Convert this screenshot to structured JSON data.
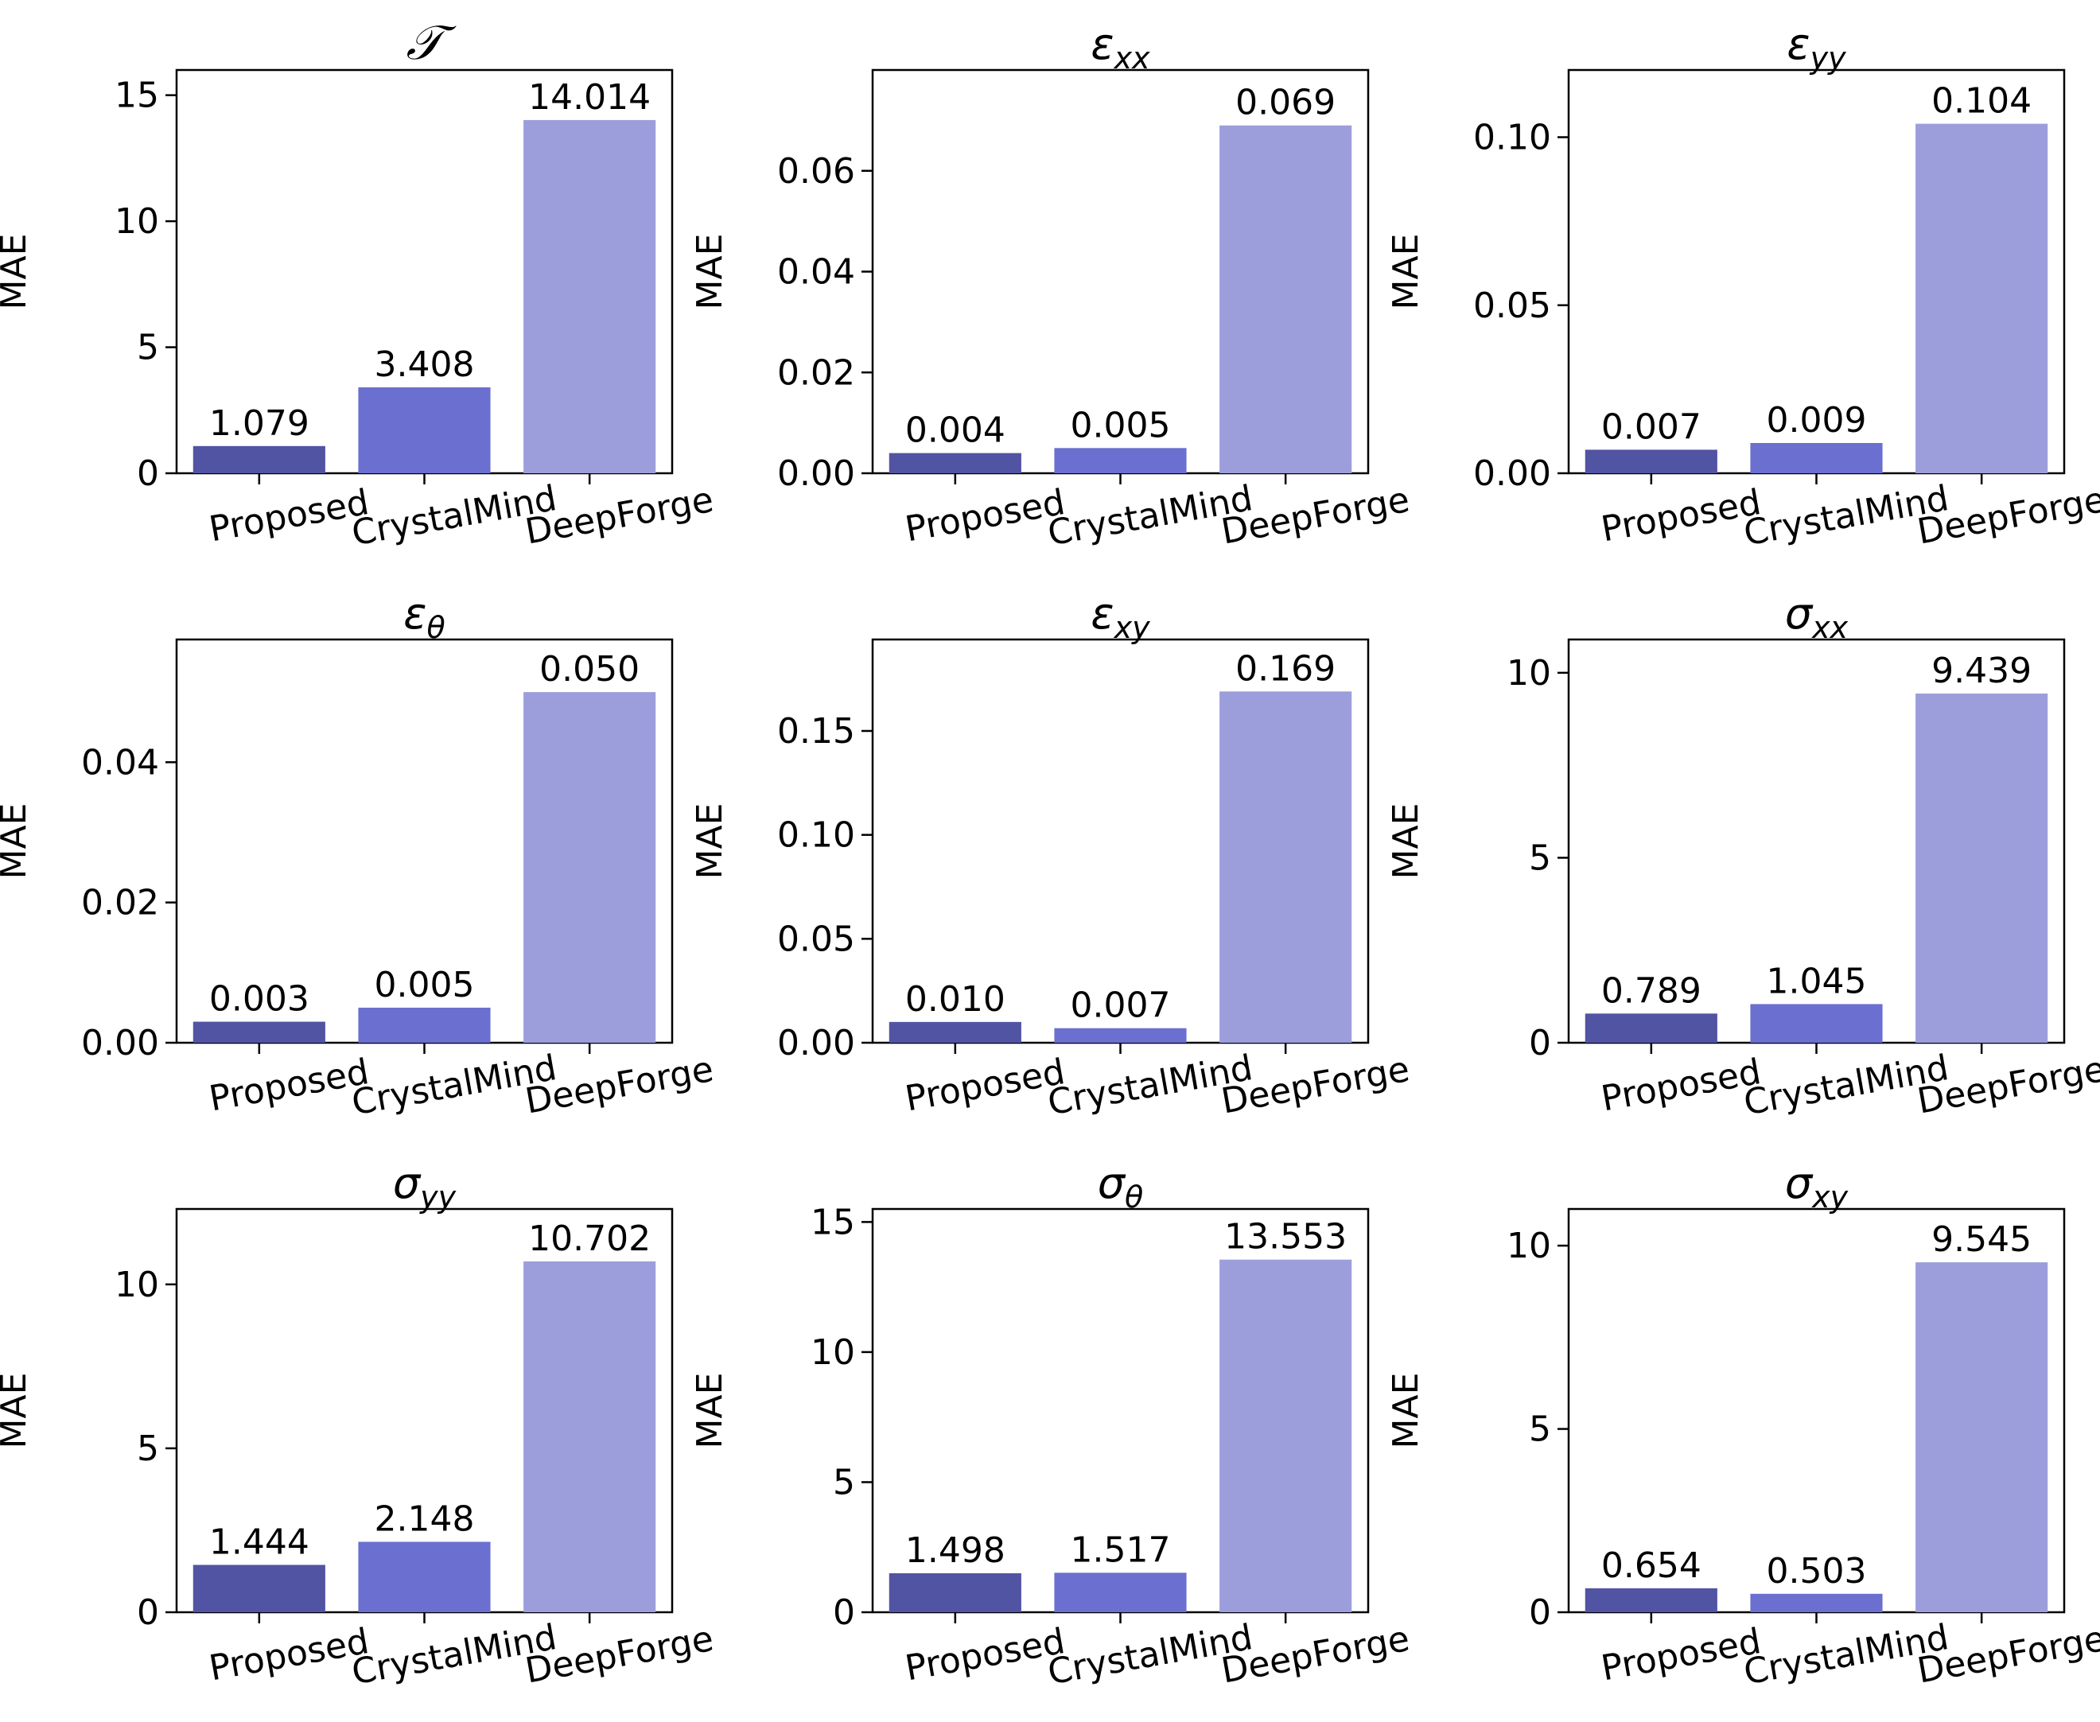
{
  "colors": {
    "proposed": "#5154a3",
    "crystalmind": "#6b6fcf",
    "deepforge": "#9c9edb",
    "axis": "#000000",
    "background": "#ffffff"
  },
  "chart_data": [
    {
      "type": "bar",
      "title": "𝒯",
      "title_style": "script",
      "ylabel": "MAE",
      "categories": [
        "Proposed",
        "CrystalMind",
        "DeepForge"
      ],
      "values": [
        1.079,
        3.408,
        14.014
      ],
      "value_labels": [
        "1.079",
        "3.408",
        "14.014"
      ],
      "ylim": [
        0,
        16.0
      ],
      "yticks": [
        0,
        5,
        10,
        15
      ],
      "ytick_labels": [
        "0",
        "5",
        "10",
        "15"
      ]
    },
    {
      "type": "bar",
      "title": "ε",
      "title_sub": "xx",
      "ylabel": "MAE",
      "categories": [
        "Proposed",
        "CrystalMind",
        "DeepForge"
      ],
      "values": [
        0.004,
        0.005,
        0.069
      ],
      "value_labels": [
        "0.004",
        "0.005",
        "0.069"
      ],
      "ylim": [
        0,
        0.08
      ],
      "yticks": [
        0,
        0.02,
        0.04,
        0.06
      ],
      "ytick_labels": [
        "0.00",
        "0.02",
        "0.04",
        "0.06"
      ]
    },
    {
      "type": "bar",
      "title": "ε",
      "title_sub": "yy",
      "ylabel": "MAE",
      "categories": [
        "Proposed",
        "CrystalMind",
        "DeepForge"
      ],
      "values": [
        0.007,
        0.009,
        0.104
      ],
      "value_labels": [
        "0.007",
        "0.009",
        "0.104"
      ],
      "ylim": [
        0,
        0.12
      ],
      "yticks": [
        0,
        0.05,
        0.1
      ],
      "ytick_labels": [
        "0.00",
        "0.05",
        "0.10"
      ]
    },
    {
      "type": "bar",
      "title": "ε",
      "title_sub": "θ",
      "ylabel": "MAE",
      "categories": [
        "Proposed",
        "CrystalMind",
        "DeepForge"
      ],
      "values": [
        0.003,
        0.005,
        0.05
      ],
      "value_labels": [
        "0.003",
        "0.005",
        "0.050"
      ],
      "ylim": [
        0,
        0.0575
      ],
      "yticks": [
        0,
        0.02,
        0.04
      ],
      "ytick_labels": [
        "0.00",
        "0.02",
        "0.04"
      ]
    },
    {
      "type": "bar",
      "title": "ε",
      "title_sub": "xy",
      "ylabel": "MAE",
      "categories": [
        "Proposed",
        "CrystalMind",
        "DeepForge"
      ],
      "values": [
        0.01,
        0.007,
        0.169
      ],
      "value_labels": [
        "0.010",
        "0.007",
        "0.169"
      ],
      "ylim": [
        0,
        0.194
      ],
      "yticks": [
        0,
        0.05,
        0.1,
        0.15
      ],
      "ytick_labels": [
        "0.00",
        "0.05",
        "0.10",
        "0.15"
      ]
    },
    {
      "type": "bar",
      "title": "σ",
      "title_sub": "xx",
      "ylabel": "MAE",
      "categories": [
        "Proposed",
        "CrystalMind",
        "DeepForge"
      ],
      "values": [
        0.789,
        1.045,
        9.439
      ],
      "value_labels": [
        "0.789",
        "1.045",
        "9.439"
      ],
      "ylim": [
        0,
        10.9
      ],
      "yticks": [
        0,
        5,
        10
      ],
      "ytick_labels": [
        "0",
        "5",
        "10"
      ]
    },
    {
      "type": "bar",
      "title": "σ",
      "title_sub": "yy",
      "ylabel": "MAE",
      "categories": [
        "Proposed",
        "CrystalMind",
        "DeepForge"
      ],
      "values": [
        1.444,
        2.148,
        10.702
      ],
      "value_labels": [
        "1.444",
        "2.148",
        "10.702"
      ],
      "ylim": [
        0,
        12.3
      ],
      "yticks": [
        0,
        5,
        10
      ],
      "ytick_labels": [
        "0",
        "5",
        "10"
      ]
    },
    {
      "type": "bar",
      "title": "σ",
      "title_sub": "θ",
      "ylabel": "MAE",
      "categories": [
        "Proposed",
        "CrystalMind",
        "DeepForge"
      ],
      "values": [
        1.498,
        1.517,
        13.553
      ],
      "value_labels": [
        "1.498",
        "1.517",
        "13.553"
      ],
      "ylim": [
        0,
        15.5
      ],
      "yticks": [
        0,
        5,
        10,
        15
      ],
      "ytick_labels": [
        "0",
        "5",
        "10",
        "15"
      ]
    },
    {
      "type": "bar",
      "title": "σ",
      "title_sub": "xy",
      "ylabel": "MAE",
      "categories": [
        "Proposed",
        "CrystalMind",
        "DeepForge"
      ],
      "values": [
        0.654,
        0.503,
        9.545
      ],
      "value_labels": [
        "0.654",
        "0.503",
        "9.545"
      ],
      "ylim": [
        0,
        11.0
      ],
      "yticks": [
        0,
        5,
        10
      ],
      "ytick_labels": [
        "0",
        "5",
        "10"
      ]
    }
  ]
}
